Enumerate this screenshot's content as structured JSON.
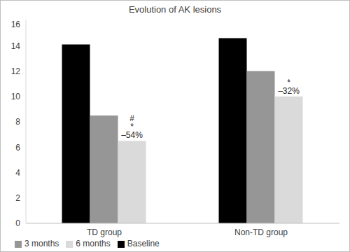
{
  "chart_data": {
    "type": "bar",
    "title": "Evolution of AK lesions",
    "categories": [
      "TD group",
      "Non-TD group"
    ],
    "series": [
      {
        "name": "Baseline",
        "color": "#000000",
        "values": [
          14.1,
          14.6
        ]
      },
      {
        "name": "3 months",
        "color": "#969696",
        "values": [
          8.5,
          12.0
        ]
      },
      {
        "name": "6 months",
        "color": "#dadada",
        "values": [
          6.5,
          10.0
        ]
      }
    ],
    "annotations": [
      {
        "series": "6 months",
        "category": "TD group",
        "lines": [
          "#",
          "*",
          "–54%"
        ]
      },
      {
        "series": "6 months",
        "category": "Non-TD group",
        "lines": [
          "*",
          "–32%"
        ]
      }
    ],
    "ylim": [
      0,
      16
    ],
    "yticks": [
      0,
      2,
      4,
      6,
      8,
      10,
      12,
      14,
      16
    ],
    "grid": false,
    "legend": "bottom"
  }
}
